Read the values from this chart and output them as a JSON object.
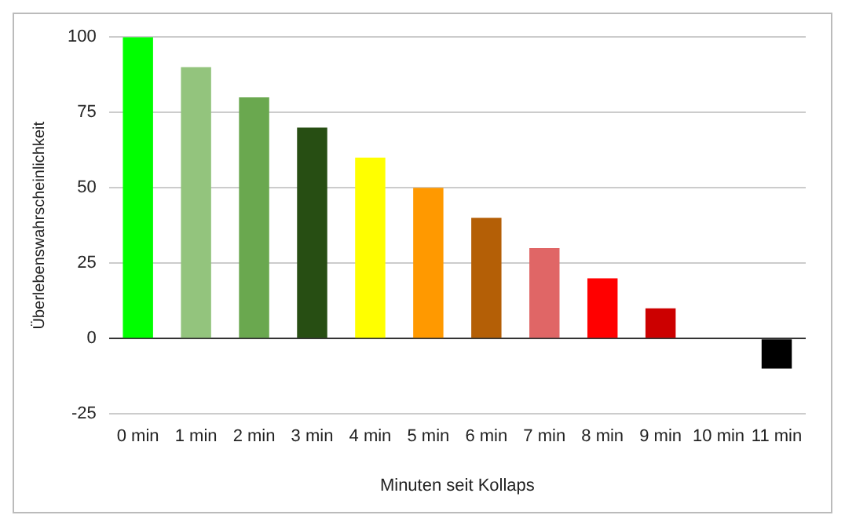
{
  "chart_data": {
    "type": "bar",
    "xlabel": "Minuten seit Kollaps",
    "ylabel": "Überlebenswahrscheinlichkeit",
    "categories": [
      "0 min",
      "1 min",
      "2 min",
      "3 min",
      "4 min",
      "5 min",
      "6 min",
      "7 min",
      "8 min",
      "9 min",
      "10 min",
      "11 min"
    ],
    "values": [
      100,
      90,
      80,
      70,
      60,
      50,
      40,
      30,
      20,
      10,
      0,
      -10
    ],
    "colors": [
      "#00ff00",
      "#93c47d",
      "#6aa84f",
      "#274e13",
      "#ffff00",
      "#ff9900",
      "#b45f06",
      "#e06666",
      "#ff0000",
      "#cc0000",
      "#999999",
      "#000000"
    ],
    "ylim": [
      -25,
      100
    ],
    "yticks": [
      -25,
      0,
      25,
      50,
      75,
      100
    ],
    "grid": "y",
    "legend": false
  }
}
